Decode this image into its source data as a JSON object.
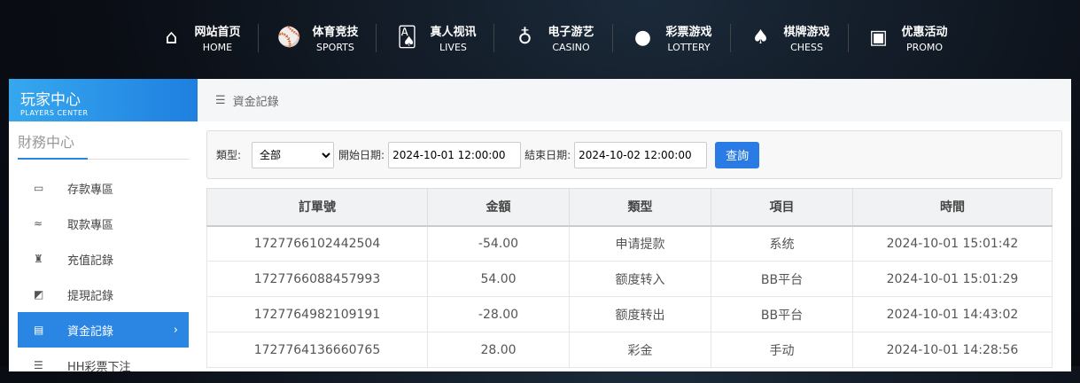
{
  "nav": [
    {
      "cn": "网站首页",
      "en": "HOME",
      "icon": "home-icon",
      "g": "⌂"
    },
    {
      "cn": "体育竞技",
      "en": "SPORTS",
      "icon": "ball-icon",
      "g": "⚾"
    },
    {
      "cn": "真人视讯",
      "en": "LIVES",
      "icon": "cards-icon",
      "g": "🂡"
    },
    {
      "cn": "电子游艺",
      "en": "CASINO",
      "icon": "joystick-icon",
      "g": "♁"
    },
    {
      "cn": "彩票游戏",
      "en": "LOTTERY",
      "icon": "lottery-balls-icon",
      "g": "●"
    },
    {
      "cn": "棋牌游戏",
      "en": "CHESS",
      "icon": "spade-icon",
      "g": "♠"
    },
    {
      "cn": "优惠活动",
      "en": "PROMO",
      "icon": "gift-icon",
      "g": "▣"
    }
  ],
  "sidebar": {
    "title": "玩家中心",
    "subtitle": "PLAYERS CENTER",
    "section": "財務中心",
    "items": [
      {
        "label": "存款專區",
        "icon": "card-icon",
        "g": "▭"
      },
      {
        "label": "取款專區",
        "icon": "hand-money-icon",
        "g": "≈"
      },
      {
        "label": "充值記錄",
        "icon": "money-bag-icon",
        "g": "♜"
      },
      {
        "label": "提現記錄",
        "icon": "wallet-icon",
        "g": "◩"
      },
      {
        "label": "資金記錄",
        "icon": "funds-icon",
        "g": "▤",
        "chev": "›"
      },
      {
        "label": "HH彩票下注",
        "icon": "list-icon",
        "g": "☰"
      }
    ]
  },
  "breadcrumb": {
    "icon": "☰",
    "label": "資金記錄"
  },
  "filter": {
    "type_label": "類型:",
    "type_value": "全部",
    "start_label": "開始日期:",
    "start_value": "2024-10-01 12:00:00",
    "end_label": "結束日期:",
    "end_value": "2024-10-02 12:00:00",
    "search": "查詢"
  },
  "table": {
    "headers": [
      "訂單號",
      "金額",
      "類型",
      "項目",
      "時間"
    ],
    "rows": [
      [
        "1727766102442504",
        "-54.00",
        "申请提款",
        "系统",
        "2024-10-01 15:01:42"
      ],
      [
        "1727766088457993",
        "54.00",
        "额度转入",
        "BB平台",
        "2024-10-01 15:01:29"
      ],
      [
        "1727764982109191",
        "-28.00",
        "额度转出",
        "BB平台",
        "2024-10-01 14:43:02"
      ],
      [
        "1727764136660765",
        "28.00",
        "彩金",
        "手动",
        "2024-10-01 14:28:56"
      ]
    ]
  }
}
